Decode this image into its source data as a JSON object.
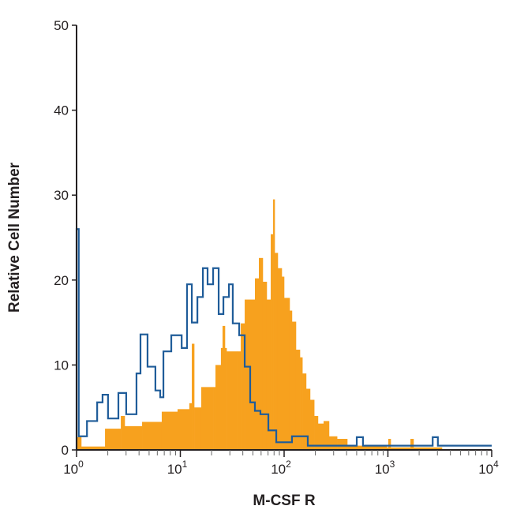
{
  "chart_data": {
    "type": "histogram",
    "xlabel": "M-CSF R",
    "ylabel": "Relative Cell Number",
    "xscale": "log",
    "xlim": [
      1,
      10000
    ],
    "ylim": [
      0,
      50
    ],
    "grid": false,
    "y_ticks": [
      0,
      10,
      20,
      30,
      40,
      50
    ],
    "x_ticks": [
      {
        "value": 1,
        "base": "10",
        "exp": "0"
      },
      {
        "value": 10,
        "base": "10",
        "exp": "1"
      },
      {
        "value": 100,
        "base": "10",
        "exp": "2"
      },
      {
        "value": 1000,
        "base": "10",
        "exp": "3"
      },
      {
        "value": 10000,
        "base": "10",
        "exp": "4"
      }
    ],
    "colors": {
      "filled": "#F7A11E",
      "outline": "#1F5C99",
      "axis": "#231f20"
    },
    "series": [
      {
        "style": "filled",
        "points": [
          [
            1.0,
            1.5
          ],
          [
            1.11,
            0.4
          ],
          [
            1.78,
            0.4
          ],
          [
            1.88,
            2.5
          ],
          [
            2.53,
            2.5
          ],
          [
            2.67,
            4
          ],
          [
            2.91,
            2.8
          ],
          [
            4.28,
            3.3
          ],
          [
            6.62,
            4.5
          ],
          [
            9.4,
            4.8
          ],
          [
            12.2,
            5.5
          ],
          [
            12.9,
            12.5
          ],
          [
            13.6,
            5
          ],
          [
            15.9,
            7.4
          ],
          [
            20.7,
            7.4
          ],
          [
            21.8,
            10
          ],
          [
            24.6,
            12
          ],
          [
            25.5,
            14.6
          ],
          [
            26.9,
            12
          ],
          [
            27.9,
            11.6
          ],
          [
            35,
            11.6
          ],
          [
            38.2,
            14.9
          ],
          [
            41.7,
            17.7
          ],
          [
            49.6,
            17.7
          ],
          [
            52.3,
            20.2
          ],
          [
            57.1,
            22.6
          ],
          [
            62.3,
            19.8
          ],
          [
            68,
            17.7
          ],
          [
            74.3,
            25.4
          ],
          [
            78.3,
            29.5
          ],
          [
            81.1,
            23.2
          ],
          [
            86.9,
            21.4
          ],
          [
            94.9,
            20.4
          ],
          [
            100,
            17.9
          ],
          [
            113,
            16.4
          ],
          [
            119,
            15.1
          ],
          [
            130,
            11.8
          ],
          [
            142,
            10.9
          ],
          [
            150,
            9
          ],
          [
            163,
            7.2
          ],
          [
            178,
            5.9
          ],
          [
            195,
            4
          ],
          [
            212,
            3.1
          ],
          [
            240,
            3.4
          ],
          [
            271,
            1.6
          ],
          [
            324,
            1.3
          ],
          [
            406,
            0.5
          ],
          [
            975,
            0.3
          ],
          [
            1009,
            1.3
          ],
          [
            1064,
            0.3
          ],
          [
            1648,
            1.3
          ],
          [
            1766,
            0.3
          ],
          [
            3320,
            0
          ]
        ]
      },
      {
        "style": "outline",
        "points": [
          [
            1.0,
            26
          ],
          [
            1.05,
            1.6
          ],
          [
            1.19,
            1.6
          ],
          [
            1.26,
            3.4
          ],
          [
            1.58,
            5.6
          ],
          [
            1.78,
            6.5
          ],
          [
            2.01,
            3.7
          ],
          [
            2.53,
            6.7
          ],
          [
            3.01,
            4.2
          ],
          [
            3.78,
            9
          ],
          [
            4.13,
            13.6
          ],
          [
            4.83,
            9.8
          ],
          [
            5.75,
            7
          ],
          [
            6.4,
            6.2
          ],
          [
            6.87,
            11.6
          ],
          [
            8.18,
            13.5
          ],
          [
            9.08,
            13.5
          ],
          [
            10.3,
            12
          ],
          [
            11.6,
            19.5
          ],
          [
            12.9,
            15
          ],
          [
            14.6,
            18
          ],
          [
            16.5,
            21.4
          ],
          [
            18.3,
            19.5
          ],
          [
            20.7,
            21.4
          ],
          [
            23.4,
            16
          ],
          [
            26,
            18
          ],
          [
            29.4,
            19.5
          ],
          [
            32,
            14.9
          ],
          [
            36.9,
            13.5
          ],
          [
            41.7,
            9.8
          ],
          [
            47.1,
            5.6
          ],
          [
            52.3,
            4.6
          ],
          [
            59.1,
            4.2
          ],
          [
            70.5,
            2.3
          ],
          [
            84,
            0.9
          ],
          [
            119,
            1.6
          ],
          [
            169,
            0.5
          ],
          [
            443,
            0.5
          ],
          [
            501,
            1.5
          ],
          [
            575,
            0.5
          ],
          [
            2460,
            0.5
          ],
          [
            2700,
            1.5
          ],
          [
            3030,
            0.5
          ],
          [
            10000,
            0.5
          ]
        ]
      }
    ]
  }
}
